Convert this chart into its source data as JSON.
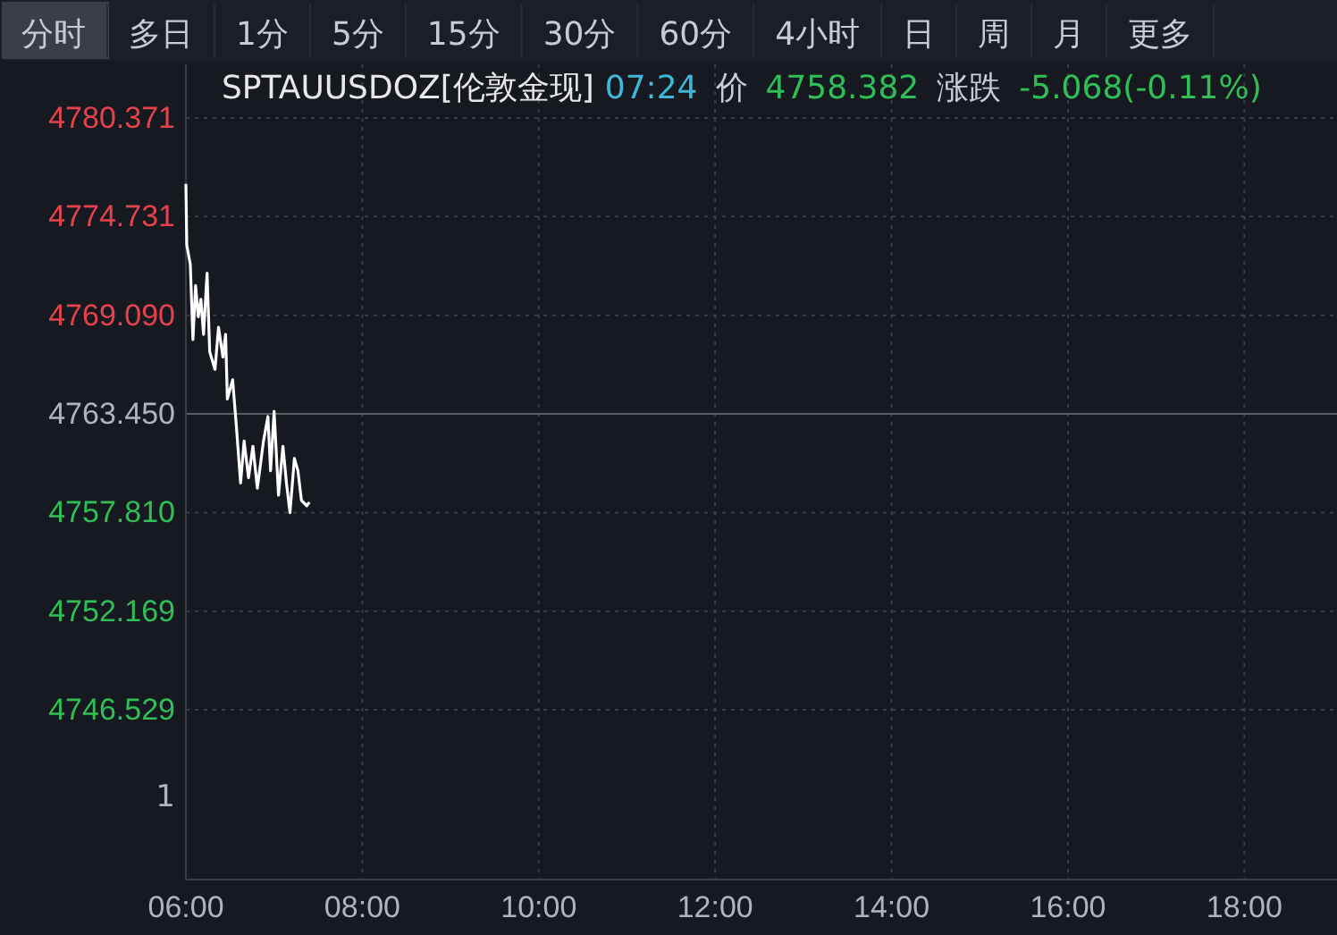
{
  "chart_data": {
    "type": "line",
    "title": "SPTAUUSDOZ[伦敦金现]",
    "annotations": [
      "分时",
      "多日",
      "1分",
      "5分",
      "15分",
      "30分",
      "60分",
      "4小时",
      "日",
      "周",
      "月",
      "更多",
      "07:24",
      "价",
      "4758.382",
      "涨跌",
      "-5.068(-0.11%)",
      "1"
    ],
    "series": [
      {
        "color": "#ffffff",
        "x": [
          6.0,
          6.01,
          6.05,
          6.08,
          6.11,
          6.14,
          6.17,
          6.2,
          6.24,
          6.27,
          6.33,
          6.37,
          6.42,
          6.45,
          6.47,
          6.53,
          6.57,
          6.62,
          6.66,
          6.71,
          6.76,
          6.81,
          6.88,
          6.93,
          6.96,
          7.0,
          7.05,
          7.1,
          7.14,
          7.18,
          7.23,
          7.27,
          7.31,
          7.37,
          7.4
        ],
        "values": [
          4776.6,
          4773.1,
          4772.0,
          4767.7,
          4770.8,
          4769.0,
          4770.0,
          4768.0,
          4771.5,
          4767.0,
          4766.0,
          4768.4,
          4766.7,
          4768.0,
          4764.3,
          4765.4,
          4762.9,
          4759.5,
          4761.9,
          4759.8,
          4761.6,
          4759.2,
          4761.9,
          4763.3,
          4760.2,
          4763.6,
          4758.8,
          4761.6,
          4759.5,
          4757.8,
          4760.9,
          4760.2,
          4758.5,
          4758.2,
          4758.4
        ]
      }
    ],
    "xlim": [
      6,
      19.05
    ],
    "xticks": [
      {
        "value": 6,
        "label": "06:00"
      },
      {
        "value": 8,
        "label": "08:00"
      },
      {
        "value": 10,
        "label": "10:00"
      },
      {
        "value": 12,
        "label": "12:00"
      },
      {
        "value": 14,
        "label": "14:00"
      },
      {
        "value": 16,
        "label": "16:00"
      },
      {
        "value": 18,
        "label": "18:00"
      }
    ],
    "ylim": [
      4736.82,
      4783.44
    ],
    "yticks": [
      {
        "value": 4780.371,
        "label": "4780.371"
      },
      {
        "value": 4774.731,
        "label": "4774.731"
      },
      {
        "value": 4769.09,
        "label": "4769.090"
      },
      {
        "value": 4763.45,
        "label": "4763.450"
      },
      {
        "value": 4757.81,
        "label": "4757.810"
      },
      {
        "value": 4752.169,
        "label": "4752.169"
      },
      {
        "value": 4746.529,
        "label": "4746.529"
      }
    ],
    "ref_lines": [
      {
        "axis": "y",
        "value": 4763.45,
        "color": "#5a5d66"
      }
    ],
    "grid": true,
    "marker": "none",
    "line_style": "solid"
  }
}
